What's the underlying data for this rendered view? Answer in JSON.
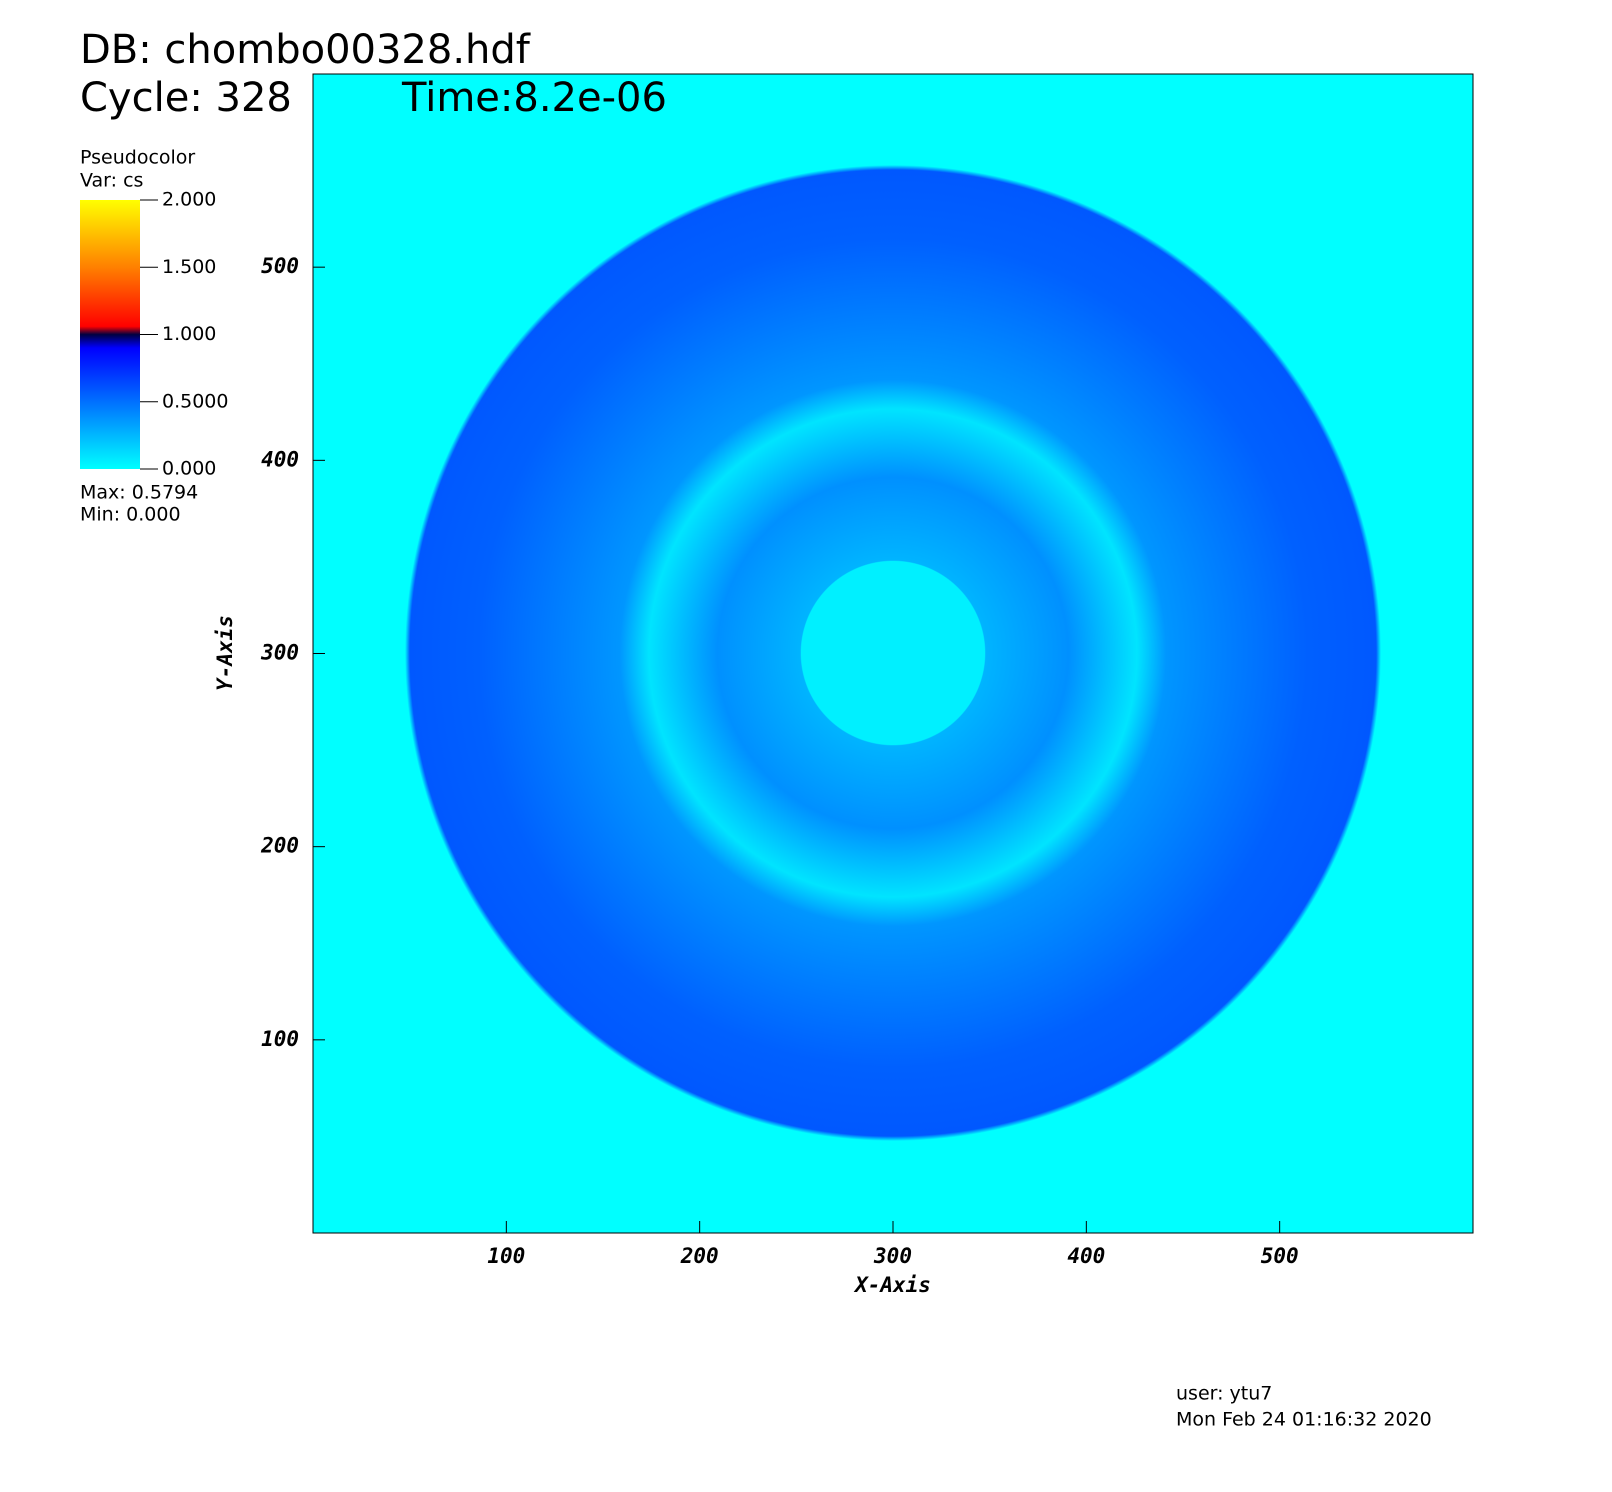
{
  "chart_data": {
    "type": "pseudocolor",
    "db": "DB: chombo00328.hdf",
    "cycle": "Cycle: 328",
    "time": "Time:8.2e-06",
    "legend": {
      "title": "Pseudocolor",
      "var": "Var: cs",
      "ticks": [
        {
          "value": 0,
          "label": "0.000"
        },
        {
          "value": 0.5,
          "label": "0.5000"
        },
        {
          "value": 1,
          "label": "1.000"
        },
        {
          "value": 1.5,
          "label": "1.500"
        },
        {
          "value": 2,
          "label": "2.000"
        }
      ],
      "lim": [
        0,
        2
      ],
      "max": "Max:  0.5794",
      "min": "Min:  0.000"
    },
    "x_label": "X-Axis",
    "y_label": "Y-Axis",
    "xlim": [
      0,
      600
    ],
    "ylim": [
      0,
      600
    ],
    "xticks": [
      100,
      200,
      300,
      400,
      500
    ],
    "yticks": [
      100,
      200,
      300,
      400,
      500
    ],
    "user": "user: ytu7",
    "date": "Mon Feb 24 01:16:32 2020"
  }
}
